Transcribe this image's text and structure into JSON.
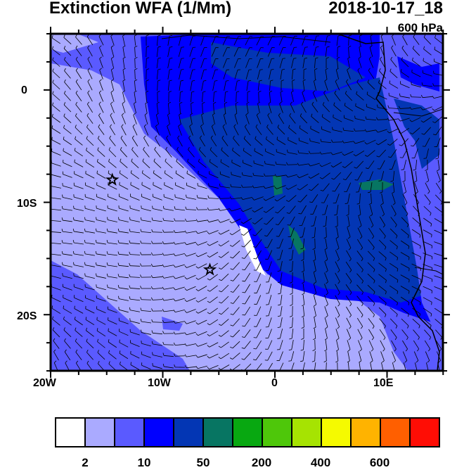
{
  "title": "Extinction WFA (1/Mm)",
  "valid_time": "2018-10-17_18",
  "level": "600 hPa",
  "map": {
    "lon_range": [
      "20W",
      "15E"
    ],
    "lat_range": [
      "5N",
      "25S"
    ],
    "lon_ticks": [
      "20W",
      "10W",
      "0",
      "10E"
    ],
    "lat_ticks": [
      "0",
      "10S",
      "20S"
    ],
    "markers": [
      {
        "symbol": "star",
        "lon": -14.5,
        "lat": -8
      },
      {
        "symbol": "star",
        "lon": -5.8,
        "lat": -16
      }
    ],
    "overlay": "wind-barbs"
  },
  "colorbar": {
    "colors": [
      "#ffffff",
      "#aaaaff",
      "#5a5aff",
      "#0000ff",
      "#0336b4",
      "#077562",
      "#08a811",
      "#4ec70a",
      "#a6e302",
      "#f5fa00",
      "#ffb300",
      "#ff5f00",
      "#ff0d05"
    ],
    "labels": [
      "2",
      "10",
      "50",
      "200",
      "400",
      "600"
    ]
  }
}
